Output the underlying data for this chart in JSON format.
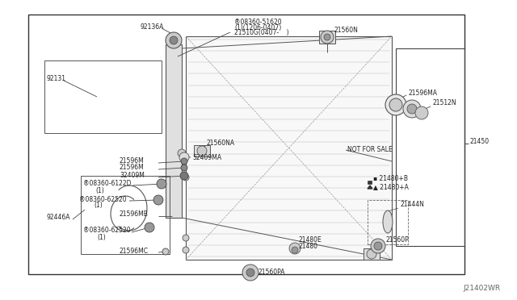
{
  "bg_color": "#f5f5f0",
  "line_color": "#444444",
  "text_color": "#222222",
  "watermark": "J21402WR",
  "fig_w": 6.4,
  "fig_h": 3.72,
  "dpi": 100,
  "xlim": [
    0,
    640
  ],
  "ylim": [
    0,
    372
  ]
}
